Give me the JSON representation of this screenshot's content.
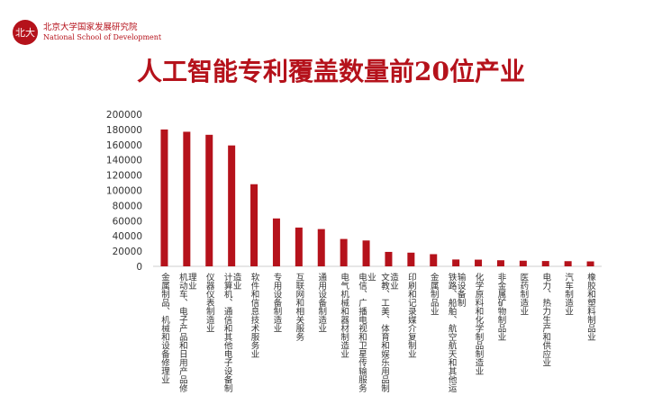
{
  "header": {
    "seal_text": "北大",
    "org_cn": "北京大学国家发展研究院",
    "org_en": "National School of Development"
  },
  "colors": {
    "bar": "#b5121b",
    "title": "#b5121b"
  },
  "chart_data": {
    "type": "bar",
    "title": "人工智能专利覆盖数量前20位产业",
    "xlabel": "",
    "ylabel": "",
    "ylim": [
      0,
      200000
    ],
    "yticks": [
      0,
      20000,
      40000,
      60000,
      80000,
      100000,
      120000,
      140000,
      160000,
      180000,
      200000
    ],
    "grid": false,
    "categories": [
      "金属制品、机械和设备修理业",
      "机动车、电子产品和日用产品修理业",
      "仪器仪表制造业",
      "计算机、通信和其他电子设备制造业",
      "软件和信息技术服务业",
      "专用设备制造业",
      "互联网和相关服务",
      "通用设备制造业",
      "电气机械和器材制造业",
      "电信、广播电视和卫星传输服务业",
      "文教、工美、体育和娱乐用品制造业",
      "印刷和记录媒介复制业",
      "金属制品业",
      "铁路、船舶、航空航天和其他运输设备制",
      "化学原料和化学制品制造业",
      "非金属矿物制品业",
      "医药制造业",
      "电力、热力生产和供应业",
      "汽车制造业",
      "橡胶和塑料制品业"
    ],
    "values": [
      180000,
      177000,
      173000,
      159000,
      108000,
      63000,
      51000,
      49000,
      36000,
      34000,
      19000,
      18000,
      16000,
      9000,
      8800,
      8000,
      7400,
      7000,
      6800,
      6500
    ]
  }
}
